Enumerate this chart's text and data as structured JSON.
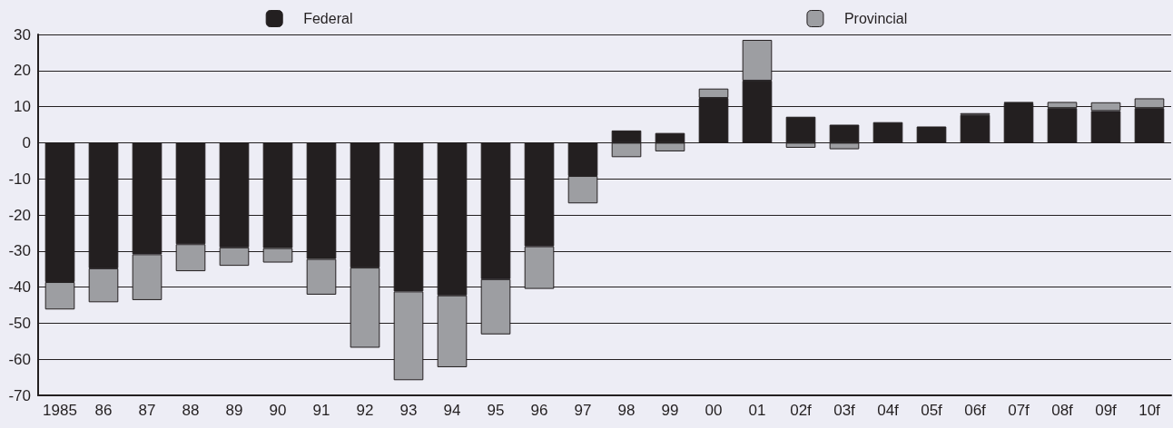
{
  "chart_data": {
    "type": "bar",
    "stacked": true,
    "categories": [
      "1985",
      "86",
      "87",
      "88",
      "89",
      "90",
      "91",
      "92",
      "93",
      "94",
      "95",
      "96",
      "97",
      "98",
      "99",
      "00",
      "01",
      "02f",
      "03f",
      "04f",
      "05f",
      "06f",
      "07f",
      "08f",
      "09f",
      "10f"
    ],
    "series": [
      {
        "name": "Federal",
        "color": "#231f20",
        "values": [
          -38.6,
          -34.8,
          -30.9,
          -28.1,
          -29.0,
          -29.2,
          -32.2,
          -34.6,
          -41.2,
          -42.3,
          -37.8,
          -28.7,
          -9.2,
          3.4,
          2.7,
          12.4,
          17.2,
          7.2,
          5.0,
          5.7,
          4.5,
          7.7,
          10.9,
          9.6,
          8.8,
          9.6
        ]
      },
      {
        "name": "Provincial",
        "color": "#9d9ea2",
        "values": [
          -7.6,
          -9.4,
          -12.7,
          -7.5,
          -5.1,
          -4.0,
          -9.9,
          -22.2,
          -24.6,
          -19.9,
          -15.3,
          -11.8,
          -7.6,
          -4.0,
          -2.4,
          2.6,
          11.3,
          -1.4,
          -1.8,
          null,
          null,
          0.5,
          0.4,
          1.7,
          2.4,
          2.7
        ]
      }
    ],
    "ylim": [
      -70,
      30
    ],
    "yticks": [
      -70,
      -60,
      -50,
      -40,
      -30,
      -20,
      -10,
      0,
      10,
      20,
      30
    ],
    "grid": "y",
    "legend": "top"
  }
}
